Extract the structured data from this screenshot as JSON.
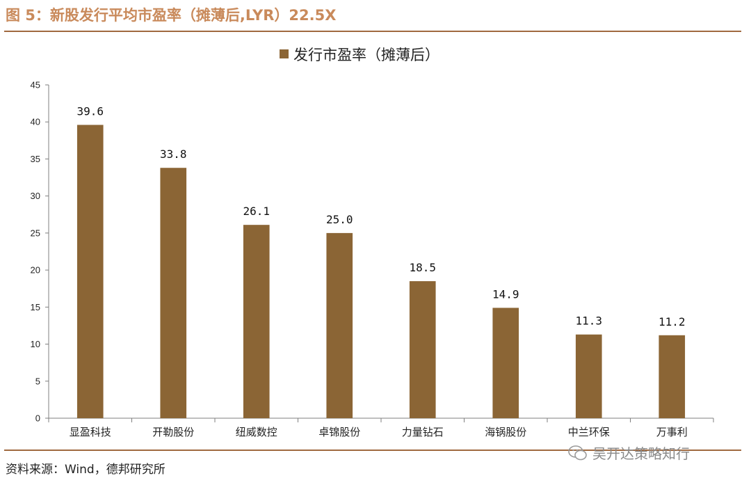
{
  "figure": {
    "title": "图 5：新股发行平均市盈率（摊薄后,LYR）22.5X",
    "source": "资料来源：Wind，德邦研究所",
    "watermark": "吴开达策略知行",
    "watermark_icon": "wechat-icon"
  },
  "colors": {
    "bar": "#8b6535",
    "rule": "#a0693f",
    "title": "#c98a5b",
    "axis": "#7f7f7f"
  },
  "chart_data": {
    "type": "bar",
    "title": "",
    "xlabel": "",
    "ylabel": "",
    "ylim": [
      0,
      45
    ],
    "yticks": [
      0,
      5,
      10,
      15,
      20,
      25,
      30,
      35,
      40,
      45
    ],
    "grid": false,
    "legend": "top",
    "categories": [
      "显盈科技",
      "开勒股份",
      "纽威数控",
      "卓锦股份",
      "力量钻石",
      "海锅股份",
      "中兰环保",
      "万事利"
    ],
    "series": [
      {
        "name": "发行市盈率（摊薄后）",
        "values": [
          39.6,
          33.8,
          26.1,
          25.0,
          18.5,
          14.9,
          11.3,
          11.2
        ],
        "data_labels": [
          "39.6",
          "33.8",
          "26.1",
          "25.0",
          "18.5",
          "14.9",
          "11.3",
          "11.2"
        ]
      }
    ]
  }
}
